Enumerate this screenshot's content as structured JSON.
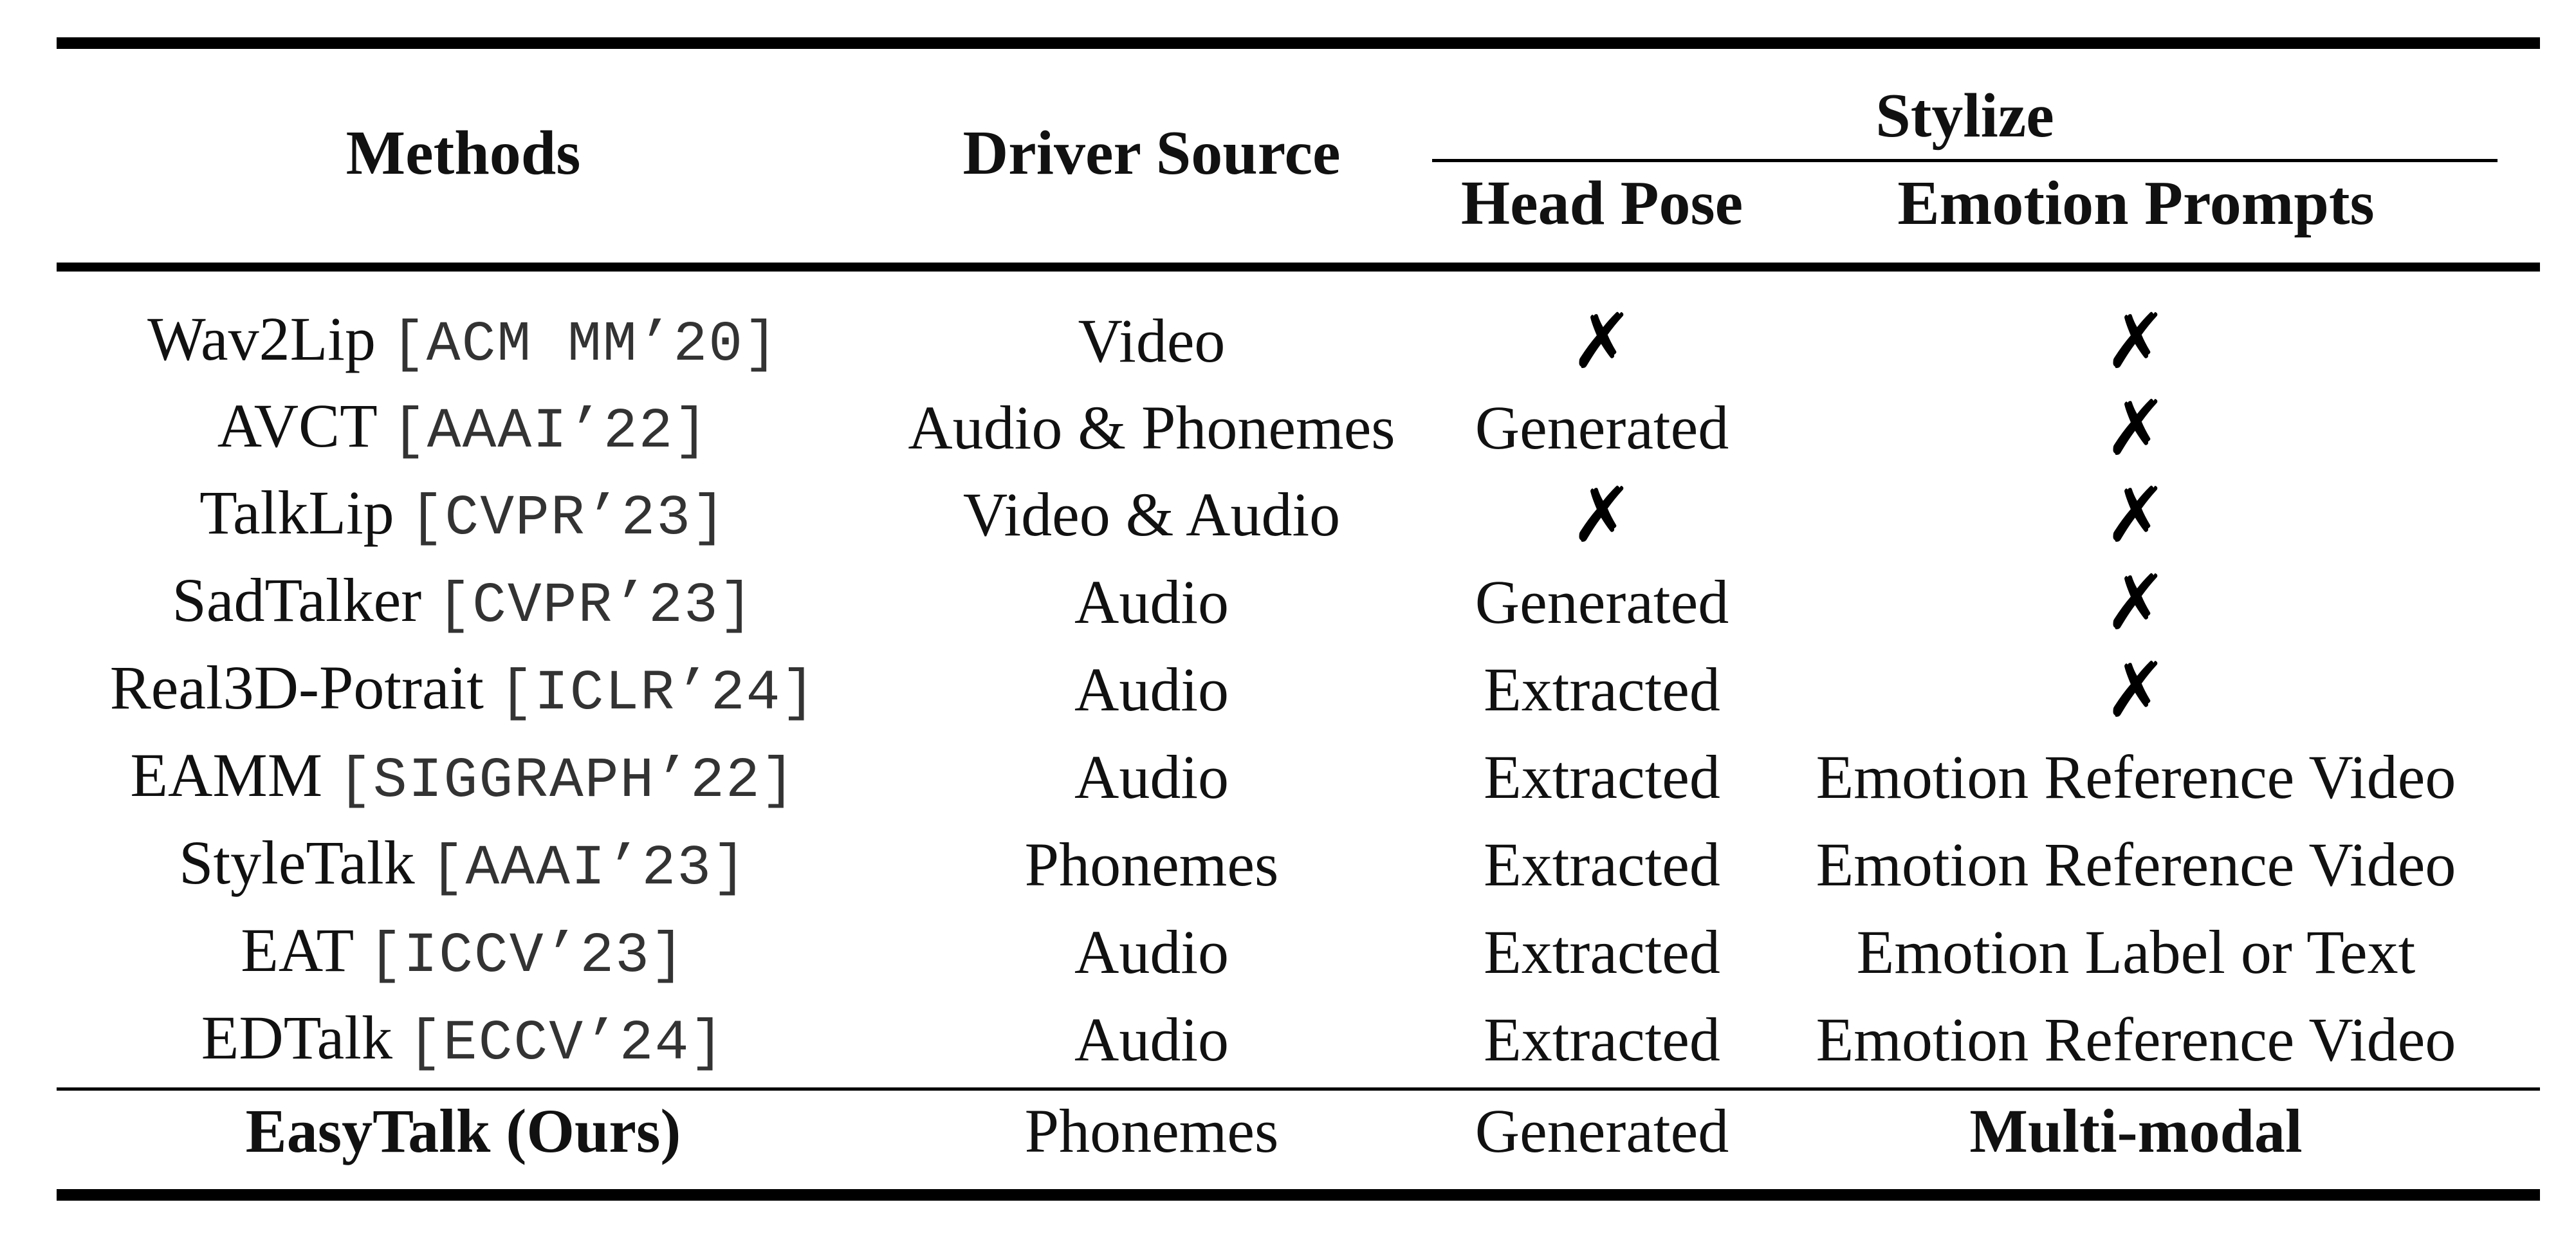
{
  "table": {
    "headers": {
      "methods": "Methods",
      "driver_source": "Driver Source",
      "stylize": "Stylize",
      "head_pose": "Head Pose",
      "emotion_prompts": "Emotion Prompts"
    },
    "rows": [
      {
        "method": "Wav2Lip",
        "venue": "[ACM MM’20]",
        "driver": "Video",
        "head_pose": "✗",
        "emotion": "✗"
      },
      {
        "method": "AVCT",
        "venue": "[AAAI’22]",
        "driver": "Audio & Phonemes",
        "head_pose": "Generated",
        "emotion": "✗"
      },
      {
        "method": "TalkLip",
        "venue": "[CVPR’23]",
        "driver": "Video & Audio",
        "head_pose": "✗",
        "emotion": "✗"
      },
      {
        "method": "SadTalker",
        "venue": "[CVPR’23]",
        "driver": "Audio",
        "head_pose": "Generated",
        "emotion": "✗"
      },
      {
        "method": "Real3D-Potrait",
        "venue": "[ICLR’24]",
        "driver": "Audio",
        "head_pose": "Extracted",
        "emotion": "✗"
      },
      {
        "method": "EAMM",
        "venue": "[SIGGRAPH’22]",
        "driver": "Audio",
        "head_pose": "Extracted",
        "emotion": "Emotion Reference Video"
      },
      {
        "method": "StyleTalk",
        "venue": "[AAAI’23]",
        "driver": "Phonemes",
        "head_pose": "Extracted",
        "emotion": "Emotion Reference Video"
      },
      {
        "method": "EAT",
        "venue": "[ICCV’23]",
        "driver": "Audio",
        "head_pose": "Extracted",
        "emotion": "Emotion Label or Text"
      },
      {
        "method": "EDTalk",
        "venue": "[ECCV’24]",
        "driver": "Audio",
        "head_pose": "Extracted",
        "emotion": "Emotion Reference Video"
      }
    ],
    "ours": {
      "method": "EasyTalk (Ours)",
      "driver": "Phonemes",
      "head_pose": "Generated",
      "emotion": "Multi-modal"
    }
  }
}
